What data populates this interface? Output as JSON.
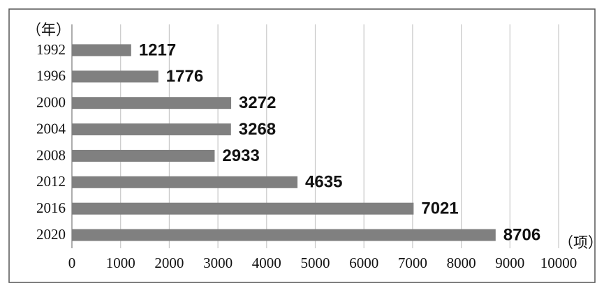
{
  "chart_data": {
    "type": "hbar",
    "y_label": "（年）",
    "x_label": "（项）",
    "categories": [
      "1992",
      "1996",
      "2000",
      "2004",
      "2008",
      "2012",
      "2016",
      "2020"
    ],
    "values": [
      1217,
      1776,
      3272,
      3268,
      2933,
      4635,
      7021,
      8706
    ],
    "color": "#808080",
    "xlim": [
      0,
      10000
    ],
    "xticks": [
      0,
      1000,
      2000,
      3000,
      4000,
      5000,
      6000,
      7000,
      8000,
      9000,
      10000
    ],
    "grid": true
  }
}
